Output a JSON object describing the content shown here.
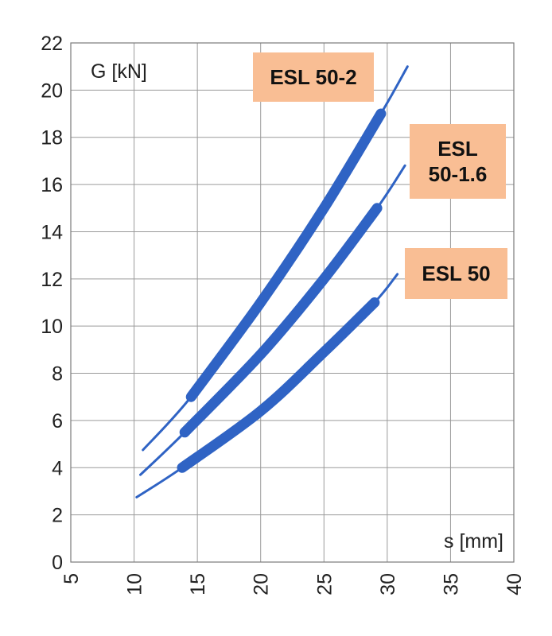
{
  "chart_data": {
    "type": "line",
    "ylabel": "G [kN]",
    "xlabel": "s [mm]",
    "xlim": [
      5,
      40
    ],
    "ylim": [
      0,
      22
    ],
    "x_ticks": [
      "5",
      "10",
      "15",
      "20",
      "25",
      "30",
      "35",
      "40"
    ],
    "y_ticks": [
      "0",
      "2",
      "4",
      "6",
      "8",
      "10",
      "12",
      "14",
      "16",
      "18",
      "20",
      "22"
    ],
    "grid": true,
    "colors": {
      "curve": "#2f63c4",
      "tag_fill": "#f9be94",
      "grid": "#9a9a9a"
    },
    "series": [
      {
        "name": "ESL 50-2",
        "label_lines": [
          "ESL 50-2"
        ],
        "thin": {
          "x": [
            10.7,
            14.5,
            20,
            25,
            29.5,
            31.6
          ],
          "y": [
            4.75,
            7.0,
            11.0,
            15.0,
            19.0,
            21.0
          ]
        },
        "thick": {
          "x": [
            14.5,
            20,
            25,
            29.5
          ],
          "y": [
            7.0,
            11.0,
            15.0,
            19.0
          ]
        }
      },
      {
        "name": "ESL 50-1.6",
        "label_lines": [
          "ESL",
          "50-1.6"
        ],
        "thin": {
          "x": [
            10.5,
            14.0,
            20,
            25,
            29.2,
            31.4
          ],
          "y": [
            3.7,
            5.5,
            8.8,
            12.0,
            15.0,
            16.8
          ]
        },
        "thick": {
          "x": [
            14.0,
            20,
            25,
            29.2
          ],
          "y": [
            5.5,
            8.8,
            12.0,
            15.0
          ]
        }
      },
      {
        "name": "ESL 50",
        "label_lines": [
          "ESL 50"
        ],
        "thin": {
          "x": [
            10.2,
            13.8,
            20,
            25,
            29.0,
            30.8
          ],
          "y": [
            2.75,
            4.0,
            6.4,
            8.9,
            11.0,
            12.2
          ]
        },
        "thick": {
          "x": [
            13.8,
            20,
            25,
            29.0
          ],
          "y": [
            4.0,
            6.4,
            8.9,
            11.0
          ]
        }
      }
    ]
  }
}
